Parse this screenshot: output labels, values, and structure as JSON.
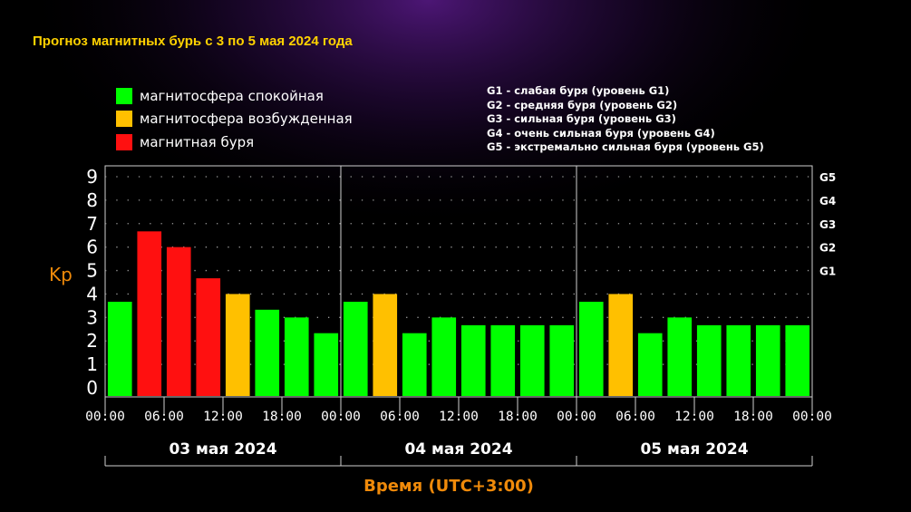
{
  "title": "Прогноз магнитных бурь с 3 по 5 мая 2024 года",
  "legend": [
    {
      "label": "магнитосфера спокойная",
      "color": "#00ff00"
    },
    {
      "label": "магнитосфера возбужденная",
      "color": "#ffc000"
    },
    {
      "label": "магнитная буря",
      "color": "#ff1010"
    }
  ],
  "g_levels": [
    "G1 - слабая буря (уровень G1)",
    "G2 - средняя буря (уровень G2)",
    "G3 - сильная буря (уровень G3)",
    "G4 - очень сильная буря (уровень G4)",
    "G5 - экстремально сильная буря (уровень G5)"
  ],
  "chart_data": {
    "type": "bar",
    "ylabel": "Kp",
    "xlabel": "Время (UTC+3:00)",
    "ylim": [
      0,
      9
    ],
    "yticks": [
      "0",
      "1",
      "2",
      "3",
      "4",
      "5",
      "6",
      "7",
      "8",
      "9"
    ],
    "right_ticks": [
      {
        "value": 5,
        "label": "G1"
      },
      {
        "value": 6,
        "label": "G2"
      },
      {
        "value": 7,
        "label": "G3"
      },
      {
        "value": 8,
        "label": "G4"
      },
      {
        "value": 9,
        "label": "G5"
      }
    ],
    "days": [
      "03 мая 2024",
      "04 мая 2024",
      "05 мая 2024"
    ],
    "xtick_labels": [
      "00:00",
      "06:00",
      "12:00",
      "18:00",
      "00:00",
      "06:00",
      "12:00",
      "18:00",
      "00:00",
      "06:00",
      "12:00",
      "18:00",
      "00:00"
    ],
    "grid": "dotted",
    "values": [
      3.67,
      6.67,
      6.0,
      4.67,
      4.0,
      3.33,
      3.0,
      2.33,
      3.67,
      4.0,
      2.33,
      3.0,
      2.67,
      2.67,
      2.67,
      2.67,
      3.67,
      4.0,
      2.33,
      3.0,
      2.67,
      2.67,
      2.67,
      2.67
    ],
    "bar_colors": [
      "#00ff00",
      "#ff1010",
      "#ff1010",
      "#ff1010",
      "#ffc000",
      "#00ff00",
      "#00ff00",
      "#00ff00",
      "#00ff00",
      "#ffc000",
      "#00ff00",
      "#00ff00",
      "#00ff00",
      "#00ff00",
      "#00ff00",
      "#00ff00",
      "#00ff00",
      "#ffc000",
      "#00ff00",
      "#00ff00",
      "#00ff00",
      "#00ff00",
      "#00ff00",
      "#00ff00"
    ]
  }
}
